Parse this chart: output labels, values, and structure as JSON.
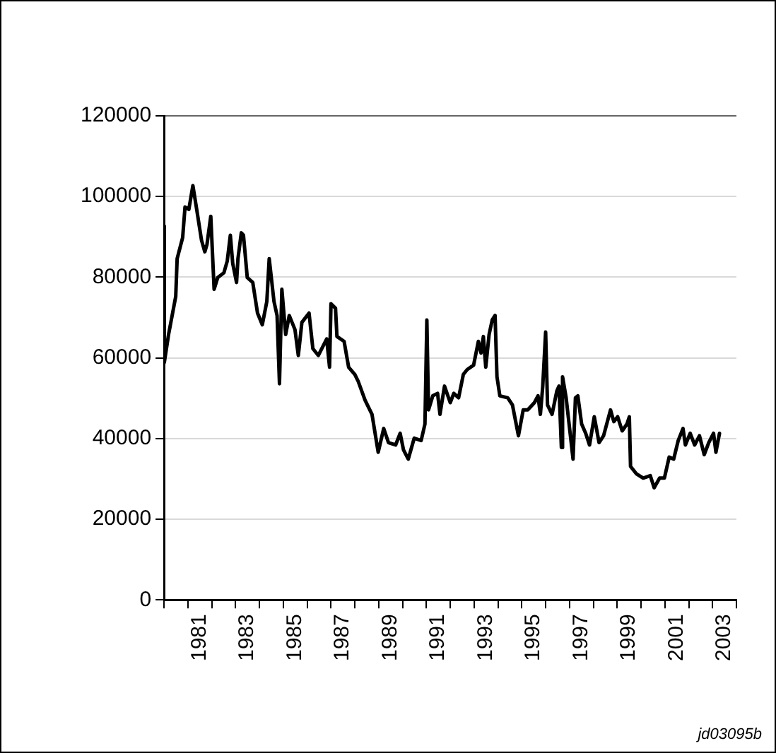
{
  "chart_data": {
    "type": "line",
    "x": [
      1980.0,
      1980.01,
      1980.19,
      1980.49,
      1980.55,
      1980.78,
      1980.88,
      1981.04,
      1981.21,
      1981.37,
      1981.57,
      1981.71,
      1981.8,
      1981.96,
      1982.1,
      1982.25,
      1982.51,
      1982.65,
      1982.78,
      1982.88,
      1983.04,
      1983.1,
      1983.24,
      1983.33,
      1983.49,
      1983.72,
      1983.92,
      1984.12,
      1984.31,
      1984.41,
      1984.61,
      1984.74,
      1984.84,
      1984.94,
      1985.1,
      1985.25,
      1985.49,
      1985.63,
      1985.78,
      1986.08,
      1986.24,
      1986.47,
      1986.82,
      1986.94,
      1987.0,
      1987.19,
      1987.25,
      1987.55,
      1987.74,
      1988.0,
      1988.14,
      1988.43,
      1988.72,
      1988.98,
      1989.21,
      1989.41,
      1989.71,
      1989.9,
      1990.04,
      1990.24,
      1990.49,
      1990.78,
      1990.94,
      1991.02,
      1991.09,
      1991.27,
      1991.47,
      1991.57,
      1991.76,
      1992.0,
      1992.15,
      1992.35,
      1992.55,
      1992.71,
      1992.98,
      1993.18,
      1993.29,
      1993.39,
      1993.49,
      1993.63,
      1993.76,
      1993.88,
      1993.96,
      1994.08,
      1994.41,
      1994.61,
      1994.86,
      1995.06,
      1995.25,
      1995.53,
      1995.68,
      1995.78,
      1995.88,
      1996.0,
      1996.08,
      1996.27,
      1996.47,
      1996.56,
      1996.66,
      1996.71,
      1996.86,
      1997.15,
      1997.25,
      1997.35,
      1997.51,
      1997.68,
      1997.84,
      1998.04,
      1998.24,
      1998.43,
      1998.72,
      1998.86,
      1999.02,
      1999.21,
      1999.41,
      1999.51,
      1999.56,
      1999.8,
      2000.09,
      2000.39,
      2000.55,
      2000.78,
      2000.98,
      2001.18,
      2001.37,
      2001.56,
      2001.76,
      2001.86,
      2002.06,
      2002.25,
      2002.45,
      2002.65,
      2002.84,
      2003.04,
      2003.14,
      2003.29
    ],
    "series": [
      {
        "color": "#000000",
        "values": [
          92700,
          58800,
          65800,
          75200,
          84600,
          89800,
          97400,
          96800,
          102700,
          96800,
          89200,
          86300,
          88100,
          95100,
          77000,
          79900,
          81100,
          84000,
          90400,
          83400,
          78700,
          84600,
          91000,
          90400,
          79900,
          78700,
          71100,
          68200,
          74000,
          84600,
          74000,
          70500,
          53600,
          77000,
          65800,
          70500,
          67000,
          60600,
          68800,
          71100,
          62300,
          60600,
          64700,
          57700,
          73400,
          72300,
          65300,
          64100,
          57700,
          55900,
          54200,
          49500,
          46000,
          36600,
          42500,
          39000,
          38400,
          41300,
          37200,
          34900,
          40100,
          39500,
          43600,
          69400,
          47100,
          50600,
          51200,
          46000,
          53000,
          48900,
          51200,
          50100,
          55900,
          57100,
          58200,
          64100,
          61200,
          65300,
          57700,
          65800,
          69400,
          70500,
          55300,
          50600,
          50100,
          48300,
          40700,
          47100,
          47100,
          48900,
          50600,
          46000,
          53000,
          66400,
          48300,
          46000,
          51800,
          53000,
          37800,
          55300,
          50100,
          34900,
          50100,
          50600,
          43600,
          41300,
          38400,
          45400,
          39000,
          40700,
          47100,
          44200,
          45400,
          41900,
          43600,
          45400,
          33100,
          31300,
          30200,
          30800,
          27800,
          30200,
          30200,
          35400,
          34900,
          39500,
          42500,
          38400,
          41300,
          38400,
          40700,
          36000,
          39000,
          41300,
          36600,
          41300
        ]
      }
    ],
    "xlim": [
      1980,
      2004
    ],
    "xticks": [
      {
        "value": 1980,
        "label": null
      },
      {
        "value": 1981,
        "label": null
      },
      {
        "value": 1981.5,
        "label": "1981"
      },
      {
        "value": 1982,
        "label": null
      },
      {
        "value": 1983,
        "label": null
      },
      {
        "value": 1983.5,
        "label": "1983"
      },
      {
        "value": 1984,
        "label": null
      },
      {
        "value": 1985,
        "label": null
      },
      {
        "value": 1985.5,
        "label": "1985"
      },
      {
        "value": 1986,
        "label": null
      },
      {
        "value": 1987,
        "label": null
      },
      {
        "value": 1987.5,
        "label": "1987"
      },
      {
        "value": 1988,
        "label": null
      },
      {
        "value": 1989,
        "label": null
      },
      {
        "value": 1989.5,
        "label": "1989"
      },
      {
        "value": 1990,
        "label": null
      },
      {
        "value": 1991,
        "label": null
      },
      {
        "value": 1991.5,
        "label": "1991"
      },
      {
        "value": 1992,
        "label": null
      },
      {
        "value": 1993,
        "label": null
      },
      {
        "value": 1993.5,
        "label": "1993"
      },
      {
        "value": 1994,
        "label": null
      },
      {
        "value": 1995,
        "label": null
      },
      {
        "value": 1995.5,
        "label": "1995"
      },
      {
        "value": 1996,
        "label": null
      },
      {
        "value": 1997,
        "label": null
      },
      {
        "value": 1997.5,
        "label": "1997"
      },
      {
        "value": 1998,
        "label": null
      },
      {
        "value": 1999,
        "label": null
      },
      {
        "value": 1999.5,
        "label": "1999"
      },
      {
        "value": 2000,
        "label": null
      },
      {
        "value": 2001,
        "label": null
      },
      {
        "value": 2001.5,
        "label": "2001"
      },
      {
        "value": 2002,
        "label": null
      },
      {
        "value": 2003,
        "label": null
      },
      {
        "value": 2003.5,
        "label": "2003"
      },
      {
        "value": 2004,
        "label": null
      }
    ],
    "ylim": [
      0,
      120000
    ],
    "yticks": [
      0,
      20000,
      40000,
      60000,
      80000,
      100000,
      120000
    ],
    "grid": "y",
    "legend": false,
    "marker": "none",
    "line_style": "solid",
    "annotations": [
      "jd03095b"
    ]
  }
}
